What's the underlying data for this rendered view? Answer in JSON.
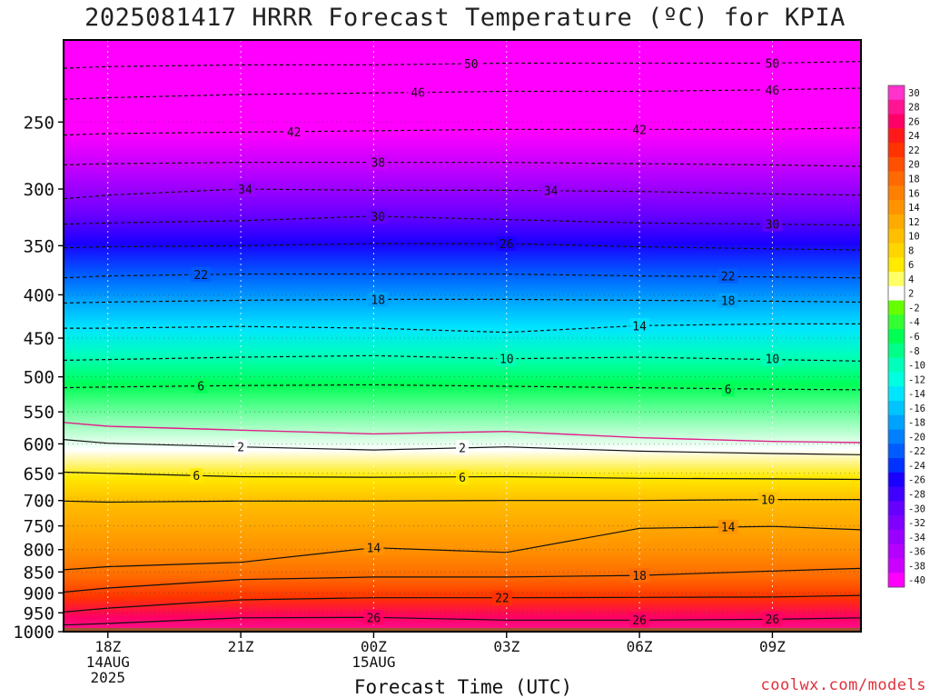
{
  "chart_data": {
    "type": "heatmap",
    "title": "2025081417 HRRR Forecast Temperature (ºC) for KPIA",
    "xlabel": "Forecast Time (UTC)",
    "ylabel": "",
    "credit": "coolwx.com/models",
    "y_scale": "log",
    "ylim": [
      1000,
      200
    ],
    "xlim_hours": [
      -1,
      17
    ],
    "y_ticks": [
      1000,
      950,
      900,
      850,
      800,
      750,
      700,
      650,
      600,
      550,
      500,
      450,
      400,
      350,
      300,
      250
    ],
    "x_ticks": [
      {
        "h": 0,
        "line1": "18Z",
        "line2": "14AUG",
        "line3": "2025"
      },
      {
        "h": 3,
        "line1": "21Z",
        "line2": "",
        "line3": ""
      },
      {
        "h": 6,
        "line1": "00Z",
        "line2": "15AUG",
        "line3": ""
      },
      {
        "h": 9,
        "line1": "03Z",
        "line2": "",
        "line3": ""
      },
      {
        "h": 12,
        "line1": "06Z",
        "line2": "",
        "line3": ""
      },
      {
        "h": 15,
        "line1": "09Z",
        "line2": "",
        "line3": ""
      }
    ],
    "surface_pressure": 990,
    "surface_color": "#a0522d",
    "freezing_line_color": "#e0208a",
    "colorbar": {
      "labels": [
        "30",
        "28",
        "26",
        "24",
        "22",
        "20",
        "18",
        "16",
        "14",
        "12",
        "10",
        "8",
        "6",
        "4",
        "2",
        "-2",
        "-4",
        "-6",
        "-8",
        "-10",
        "-12",
        "-14",
        "-16",
        "-18",
        "-20",
        "-22",
        "-24",
        "-26",
        "-28",
        "-30",
        "-32",
        "-34",
        "-36",
        "-38",
        "-40"
      ],
      "colors": [
        "#ff33cc",
        "#ff1493",
        "#ff0066",
        "#ff1a1a",
        "#ff3300",
        "#ff5000",
        "#ff6a00",
        "#ff8000",
        "#ff9400",
        "#ffaa00",
        "#ffbf00",
        "#ffd500",
        "#ffea00",
        "#ffff66",
        "#ffffff",
        "#66ff00",
        "#33ff33",
        "#00ff55",
        "#00ff88",
        "#00ffbb",
        "#00ffe0",
        "#00e5ff",
        "#00c4ff",
        "#00a2ff",
        "#0080ff",
        "#005cff",
        "#0033ff",
        "#1a00ff",
        "#4000ff",
        "#6600ff",
        "#8000ff",
        "#9900ff",
        "#b300ff",
        "#cc00ff",
        "#ff00ff"
      ]
    },
    "hours": [
      -1,
      0,
      3,
      6,
      9,
      12,
      15,
      17
    ],
    "contours": [
      {
        "value": 50,
        "dashed": true,
        "p": [
          216,
          215,
          214,
          214,
          213,
          213,
          213,
          212
        ],
        "label_hour": 8.2
      },
      {
        "value": 46,
        "dashed": true,
        "p": [
          235,
          234,
          232,
          231,
          230,
          230,
          229,
          228
        ],
        "label_hour": 7.0
      },
      {
        "value": 42,
        "dashed": true,
        "p": [
          259,
          258,
          257,
          256,
          255,
          255,
          255,
          254
        ],
        "label_hour": 4.2
      },
      {
        "value": 38,
        "dashed": true,
        "p": [
          281,
          280,
          279,
          279,
          279,
          280,
          281,
          282
        ],
        "label_hour": 6.1
      },
      {
        "value": 34,
        "dashed": true,
        "p": [
          308,
          305,
          300,
          301,
          301,
          302,
          304,
          305
        ],
        "label_hour": 3.1
      },
      {
        "value": 30,
        "dashed": true,
        "p": [
          330,
          329,
          327,
          323,
          326,
          329,
          330,
          331
        ],
        "label_hour": 6.1
      },
      {
        "value": 26,
        "dashed": true,
        "p": [
          352,
          351,
          350,
          348,
          348,
          351,
          353,
          354
        ],
        "label_hour": 9.0
      },
      {
        "value": 22,
        "dashed": true,
        "p": [
          382,
          380,
          378,
          378,
          378,
          380,
          381,
          382
        ],
        "label_hour": 2.1
      },
      {
        "value": 18,
        "dashed": true,
        "p": [
          409,
          408,
          406,
          405,
          405,
          406,
          407,
          408
        ],
        "label_hour": 6.1
      },
      {
        "value": 14,
        "dashed": true,
        "p": [
          438,
          438,
          436,
          438,
          443,
          435,
          433,
          433
        ],
        "label_hour": 12.0
      },
      {
        "value": 10,
        "dashed": true,
        "p": [
          478,
          477,
          474,
          472,
          476,
          474,
          477,
          479
        ],
        "label_hour": 9.0
      },
      {
        "value": 6,
        "dashed": true,
        "p": [
          515,
          514,
          512,
          511,
          513,
          515,
          517,
          518
        ],
        "label_hour": 2.1
      },
      {
        "value": 2,
        "dashed": false,
        "p": [
          593,
          599,
          605,
          610,
          605,
          612,
          616,
          618
        ],
        "label_hour": 3.0
      },
      {
        "value": 6,
        "dashed": false,
        "p": [
          648,
          650,
          656,
          657,
          656,
          659,
          660,
          661
        ],
        "label_hour": 2.0
      },
      {
        "value": 10,
        "dashed": false,
        "p": [
          701,
          703,
          701,
          701,
          700,
          700,
          698,
          698
        ],
        "label_hour": 14.9
      },
      {
        "value": 14,
        "dashed": false,
        "p": [
          845,
          838,
          828,
          796,
          806,
          755,
          751,
          758
        ],
        "label_hour": 6.0
      },
      {
        "value": 18,
        "dashed": false,
        "p": [
          898,
          888,
          868,
          862,
          862,
          858,
          848,
          842
        ],
        "label_hour": 12.0
      },
      {
        "value": 22,
        "dashed": false,
        "p": [
          948,
          938,
          917,
          912,
          912,
          911,
          910,
          906
        ],
        "label_hour": 8.9
      },
      {
        "value": 26,
        "dashed": false,
        "p": [
          982,
          978,
          963,
          962,
          969,
          969,
          967,
          963
        ],
        "label_hour": 6.0
      }
    ],
    "contour_labels_extra": [
      {
        "value": 50,
        "hour": 15.0,
        "p": 213
      },
      {
        "value": 46,
        "hour": 15.0,
        "p": 229
      },
      {
        "value": 42,
        "hour": 12.0,
        "p": 255
      },
      {
        "value": 34,
        "hour": 10.0,
        "p": 301
      },
      {
        "value": 30,
        "hour": 15.0,
        "p": 330
      },
      {
        "value": 22,
        "hour": 14.0,
        "p": 380
      },
      {
        "value": 18,
        "hour": 14.0,
        "p": 406
      },
      {
        "value": 10,
        "hour": 15.0,
        "p": 476
      },
      {
        "value": 6,
        "hour": 14.0,
        "p": 517
      },
      {
        "value": 2,
        "hour": 8.0,
        "p": 606
      },
      {
        "value": 6,
        "hour": 8.0,
        "p": 657
      },
      {
        "value": 14,
        "hour": 14.0,
        "p": 752
      },
      {
        "value": 26,
        "hour": 12.0,
        "p": 968
      },
      {
        "value": 26,
        "hour": 15.0,
        "p": 966
      }
    ],
    "freezing_line_p": [
      566,
      572,
      578,
      584,
      580,
      590,
      596,
      598
    ]
  }
}
